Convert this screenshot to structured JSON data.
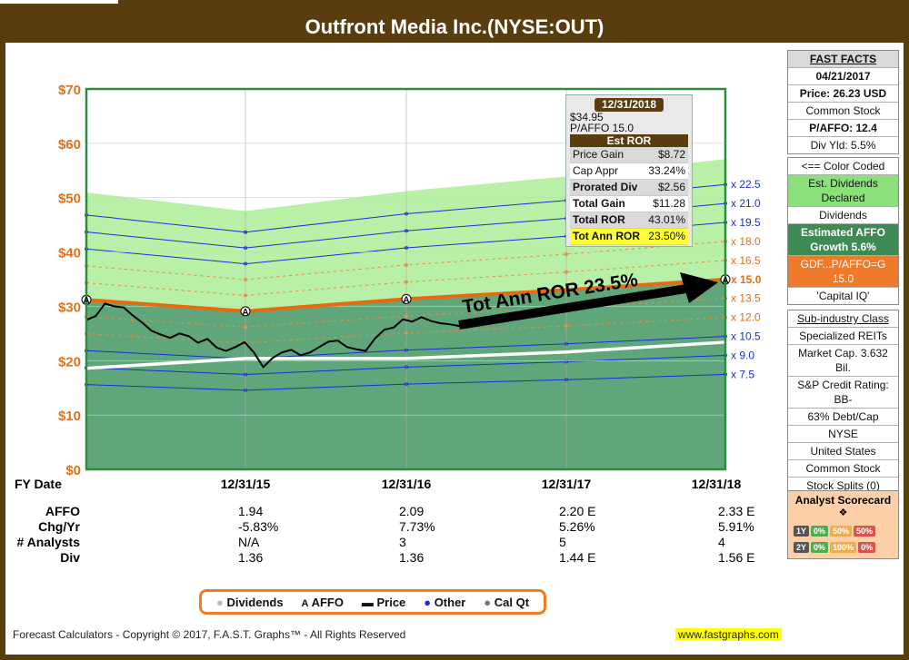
{
  "title": "Outfront Media Inc.(NYSE:OUT)",
  "chart_data": {
    "type": "line",
    "ylim": [
      0,
      70
    ],
    "y_tick_labels": [
      "$0",
      "$10",
      "$20",
      "$30",
      "$40",
      "$50",
      "$60",
      "$70"
    ],
    "fy_header": "FY Date",
    "x_dates": [
      "12/31/15",
      "12/31/16",
      "12/31/17",
      "12/31/18"
    ],
    "rows": [
      {
        "label": "AFFO",
        "values": [
          "1.94",
          "2.09",
          "2.20 E",
          "2.33 E"
        ]
      },
      {
        "label": "Chg/Yr",
        "values": [
          "-5.83%",
          "7.73%",
          "5.26%",
          "5.91%"
        ]
      },
      {
        "label": "# Analysts",
        "values": [
          "N/A",
          "3",
          "5",
          "4"
        ]
      },
      {
        "label": "Div",
        "values": [
          "1.36",
          "1.36",
          "1.44 E",
          "1.56 E"
        ]
      }
    ],
    "multiples": [
      "x 22.5",
      "x 21.0",
      "x 19.5",
      "x 18.0",
      "x 16.5",
      "x 15.0",
      "x 13.5",
      "x 12.0",
      "x 10.5",
      "x 9.0",
      "x 7.5"
    ],
    "affo_values": [
      1.94,
      2.09,
      2.2,
      2.33
    ],
    "dividend_values": [
      1.36,
      1.36,
      1.44,
      1.56
    ],
    "affo_start": 2.08,
    "normal_pe": 15.0,
    "annotation": "Tot Ann ROR 23.5%",
    "colors": {
      "green_fill": "#5fa77a",
      "orange_line": "#e86a10",
      "blue_line": "#1a2fd6",
      "price_line": "#000000",
      "div_line": "#ffffff",
      "light_green": "#b9f0a8"
    }
  },
  "tooltip": {
    "date": "12/31/2018",
    "price": "$34.95",
    "pe": "P/AFFO 15.0",
    "header": "Est ROR",
    "rows": [
      {
        "label": "Price Gain",
        "value": "$8.72"
      },
      {
        "label": "Cap Appr",
        "value": "33.24%"
      },
      {
        "label": "Prorated Div",
        "value": "$2.56"
      },
      {
        "label": "Total Gain",
        "value": "$11.28"
      },
      {
        "label": "Total ROR",
        "value": "43.01%"
      },
      {
        "label": "Tot Ann ROR",
        "value": "23.50%"
      }
    ]
  },
  "fast_facts": {
    "header": "FAST FACTS",
    "date": "04/21/2017",
    "price": "Price: 26.23 USD",
    "stock_type": "Common Stock",
    "pe": "P/AFFO: 12.4",
    "div_yld": "Div Yld: 5.5%",
    "color_coded": "<== Color Coded",
    "est_div": "Est. Dividends Declared",
    "dividends": "Dividends",
    "est_affo": "Estimated AFFO Growth 5.6%",
    "gdf": "GDF...P/AFFO=G 15.0",
    "capital_iq": "'Capital IQ'",
    "subindustry_label": "Sub-industry Class",
    "subindustry": "Specialized REITs",
    "market_cap": "Market Cap. 3.632 Bil.",
    "credit": "S&P Credit Rating: BB-",
    "debt": "63% Debt/Cap",
    "exchange": "NYSE",
    "country": "United States",
    "common": "Common Stock",
    "splits": "Stock Splits (0)"
  },
  "scorecard": {
    "title": "Analyst Scorecard",
    "row1": [
      "1Y",
      "0%",
      "50%",
      "50%"
    ],
    "row2": [
      "2Y",
      "0%",
      "100%",
      "0%"
    ]
  },
  "legend": {
    "dividends": "Dividends",
    "affo": "AFFO",
    "price": "Price",
    "other": "Other",
    "calqt": "Cal Qt"
  },
  "footer": {
    "copyright": "Forecast Calculators - Copyright © 2017, F.A.S.T. Graphs™ - All Rights Reserved",
    "url": "www.fastgraphs.com"
  }
}
